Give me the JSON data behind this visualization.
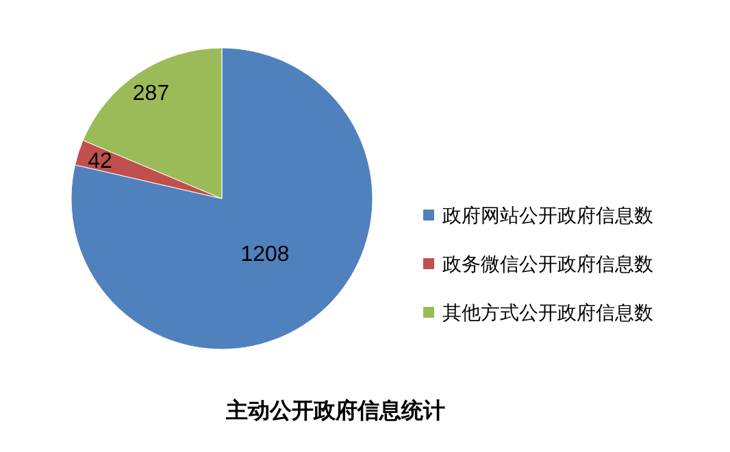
{
  "chart_data": {
    "type": "pie",
    "title": "主动公开政府信息统计",
    "categories": [
      "政府网站公开政府信息数",
      "政务微信公开政府信息数",
      "其他方式公开政府信息数"
    ],
    "values": [
      1208,
      42,
      287
    ],
    "colors": [
      "#4f81bd",
      "#c0504d",
      "#9bbb59"
    ],
    "data_labels": true,
    "legend": "right"
  }
}
